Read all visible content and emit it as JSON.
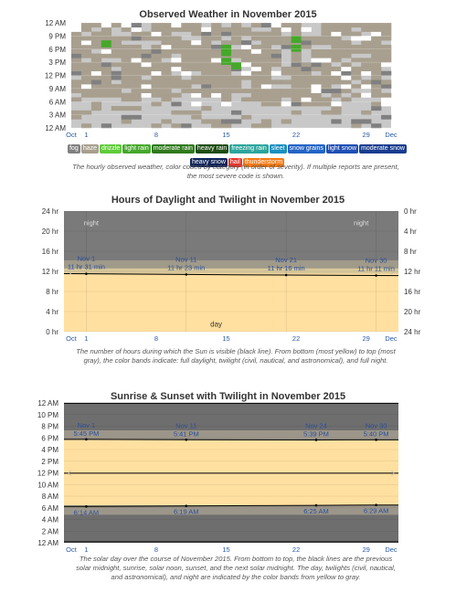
{
  "charts": [
    {
      "title": "Observed Weather in November 2015",
      "caption": "The hourly observed weather, color coded by category (in order of severity). If multiple reports are present, the most severe code is shown."
    },
    {
      "title": "Hours of Daylight and Twilight in November 2015",
      "caption": "The number of hours during which the Sun is visible (black line). From bottom (most yellow) to top (most gray), the color bands indicate: full daylight, twilight (civil, nautical, and astronomical), and full night."
    },
    {
      "title": "Sunrise & Sunset with Twilight in November 2015",
      "caption": "The solar day over the course of November 2015. From bottom to top, the black lines are the previous solar midnight, sunrise, solar noon, sunset, and the next solar midnight. The day, twilights (civil, nautical, and astronomical), and night are indicated by the color bands from yellow to gray."
    }
  ],
  "chart_data": [
    {
      "type": "heatmap",
      "title": "Observed Weather in November 2015",
      "x_tick_labels": [
        "Oct",
        "1",
        "8",
        "15",
        "22",
        "29",
        "Dec"
      ],
      "y_tick_labels": [
        "12 AM",
        "9 PM",
        "6 PM",
        "3 PM",
        "12 PM",
        "9 AM",
        "6 AM",
        "3 AM",
        "12 AM"
      ],
      "legend": [
        {
          "name": "fog",
          "color": "#808080"
        },
        {
          "name": "haze",
          "color": "#a89f8f"
        },
        {
          "name": "drizzle",
          "color": "#5fcc3a"
        },
        {
          "name": "light rain",
          "color": "#45a82a"
        },
        {
          "name": "moderate rain",
          "color": "#2f7a1d"
        },
        {
          "name": "heavy rain",
          "color": "#1d4d12"
        },
        {
          "name": "freezing rain",
          "color": "#2ba59c"
        },
        {
          "name": "sleet",
          "color": "#1a8fc0"
        },
        {
          "name": "snow grains",
          "color": "#2364c7"
        },
        {
          "name": "light snow",
          "color": "#1f4fb5"
        },
        {
          "name": "moderate snow",
          "color": "#183d8f"
        },
        {
          "name": "heavy snow",
          "color": "#0f2459"
        },
        {
          "name": "hail",
          "color": "#e8362b"
        },
        {
          "name": "thunderstorm",
          "color": "#f57a15"
        }
      ]
    },
    {
      "type": "area",
      "title": "Hours of Daylight and Twilight in November 2015",
      "x_tick_labels": [
        "Oct",
        "1",
        "8",
        "15",
        "22",
        "29",
        "Dec"
      ],
      "y_tick_labels": [
        "24 hr",
        "20 hr",
        "16 hr",
        "12 hr",
        "8 hr",
        "4 hr",
        "0 hr"
      ],
      "y_right_tick_labels": [
        "0 hr",
        "4 hr",
        "8 hr",
        "12 hr",
        "16 hr",
        "20 hr",
        "24 hr"
      ],
      "ylim": [
        0,
        24
      ],
      "band_labels": {
        "night": "night",
        "day": "day"
      },
      "x_days": [
        1,
        11,
        21,
        30
      ],
      "daylight_hours": [
        11.52,
        11.38,
        11.27,
        11.18
      ],
      "annotations": [
        {
          "date": "Nov 1",
          "value": "11 hr 31 min"
        },
        {
          "date": "Nov 11",
          "value": "11 hr 23 min"
        },
        {
          "date": "Nov 21",
          "value": "11 hr 16 min"
        },
        {
          "date": "Nov 30",
          "value": "11 hr 11 min"
        }
      ]
    },
    {
      "type": "area",
      "title": "Sunrise & Sunset with Twilight in November 2015",
      "x_tick_labels": [
        "Oct",
        "1",
        "8",
        "15",
        "22",
        "29",
        "Dec"
      ],
      "y_tick_labels": [
        "12 AM",
        "10 PM",
        "8 PM",
        "6 PM",
        "4 PM",
        "2 PM",
        "12 PM",
        "10 AM",
        "8 AM",
        "6 AM",
        "4 AM",
        "2 AM",
        "12 AM"
      ],
      "ylim": [
        0,
        24
      ],
      "sunset_days": [
        1,
        11,
        24,
        30
      ],
      "sunset_hours": [
        17.75,
        17.68,
        17.65,
        17.67
      ],
      "sunrise_days": [
        1,
        11,
        24,
        30
      ],
      "sunrise_hours": [
        6.23,
        6.32,
        6.42,
        6.48
      ],
      "sunset_labels": [
        {
          "date": "Nov 1",
          "value": "5:45 PM"
        },
        {
          "date": "Nov 11",
          "value": "5:41 PM"
        },
        {
          "date": "Nov 24",
          "value": "5:39 PM"
        },
        {
          "date": "Nov 30",
          "value": "5:40 PM"
        }
      ],
      "sunrise_labels": [
        {
          "value": "6:14 AM"
        },
        {
          "value": "6:19 AM"
        },
        {
          "value": "6:25 AM"
        },
        {
          "value": "6:29 AM"
        }
      ]
    }
  ]
}
